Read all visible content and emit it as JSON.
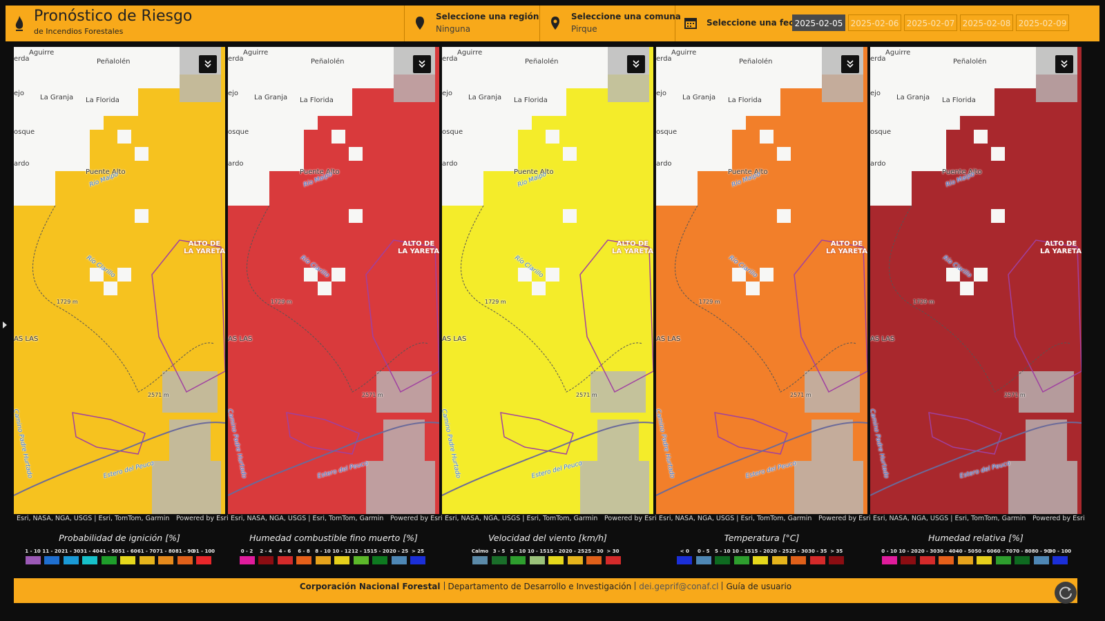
{
  "header": {
    "title": "Pronóstico de Riesgo",
    "subtitle": "de Incendios Forestales",
    "region": {
      "label": "Seleccione una región",
      "value": "Ninguna"
    },
    "comuna": {
      "label": "Seleccione una comuna",
      "value": "Pirque"
    },
    "date": {
      "label": "Seleccione una fecha",
      "options": [
        "2025-02-05",
        "2025-02-06",
        "2025-02-07",
        "2025-02-08",
        "2025-02-09"
      ],
      "selected": 0
    }
  },
  "map_labels": [
    "Aguirre",
    "erda",
    "Peñalolén",
    "ejo",
    "La Granja",
    "La Florida",
    "osque",
    "ardo",
    "Puente Alto",
    "Río Maipo",
    "ALTO DE LA YARETA",
    "Río Clarillo",
    "1729 m",
    "2571 m",
    "Camino Padre Hurtado",
    "Estero del Peuco",
    "AS LAS"
  ],
  "panels": [
    {
      "title": "Probabilidad de ignición [%]",
      "color": "#f6c21f",
      "attribution": "Esri, NASA, NGA, USGS | Esri, TomTom, Garmin…",
      "powered": "Powered by Esri",
      "legend": [
        {
          "label": "1 - 10",
          "color": "#9b59b6"
        },
        {
          "label": "11 - 20",
          "color": "#1f6fd0"
        },
        {
          "label": "21 - 30",
          "color": "#1a9ad6"
        },
        {
          "label": "31 - 40",
          "color": "#17c0c9"
        },
        {
          "label": "41 - 50",
          "color": "#1f9e2b"
        },
        {
          "label": "51 - 60",
          "color": "#e6d81c"
        },
        {
          "label": "61 - 70",
          "color": "#e6b41c"
        },
        {
          "label": "71 - 80",
          "color": "#e68a1c"
        },
        {
          "label": "81 - 90",
          "color": "#e0601a"
        },
        {
          "label": "91 - 100",
          "color": "#e8262a"
        }
      ]
    },
    {
      "title": "Humedad combustible fino muerto [%]",
      "color": "#d93a3c",
      "attribution": "Esri, NASA, NGA, USGS | Esri, TomTom, Garmin,…",
      "powered": "Powered by Esri",
      "legend": [
        {
          "label": "0 - 2",
          "color": "#e01c9c"
        },
        {
          "label": "2 - 4",
          "color": "#8b0d12"
        },
        {
          "label": "4 - 6",
          "color": "#d42a2a"
        },
        {
          "label": "6 - 8",
          "color": "#e6601a"
        },
        {
          "label": "8 - 10",
          "color": "#e6a31c"
        },
        {
          "label": "10 - 12",
          "color": "#e6d01c"
        },
        {
          "label": "12 - 15",
          "color": "#5cb82a"
        },
        {
          "label": "15 - 20",
          "color": "#0e7a20"
        },
        {
          "label": "20 - 25",
          "color": "#4e87b5"
        },
        {
          "label": "> 25",
          "color": "#1b2fd8"
        }
      ]
    },
    {
      "title": "Velocidad del viento [km/h]",
      "color": "#f4ec2a",
      "attribution": "Esri, NASA, NGA, USGS | Esri, TomTom, Garmin, …",
      "powered": "Powered by Esri",
      "legend": [
        {
          "label": "Calmo",
          "color": "#5b8aa8"
        },
        {
          "label": "3 - 5",
          "color": "#1a6e2a"
        },
        {
          "label": "5 - 10",
          "color": "#2e9e2e"
        },
        {
          "label": "10 - 15",
          "color": "#9bc27a"
        },
        {
          "label": "15 - 20",
          "color": "#e6d81c"
        },
        {
          "label": "20 - 25",
          "color": "#e6b41c"
        },
        {
          "label": "25 - 30",
          "color": "#e0601a"
        },
        {
          "label": "> 30",
          "color": "#d42a2a"
        }
      ]
    },
    {
      "title": "Temperatura [°C]",
      "color": "#f27f2a",
      "attribution": "Esri, NASA, NGA, USGS | Esri, TomTom, Garmin, …",
      "powered": "Powered by Esri",
      "legend": [
        {
          "label": "< 0",
          "color": "#1b2fd8"
        },
        {
          "label": "0 - 5",
          "color": "#4e87b5"
        },
        {
          "label": "5 - 10",
          "color": "#0e6a20"
        },
        {
          "label": "10 - 15",
          "color": "#2e9e2e"
        },
        {
          "label": "15 - 20",
          "color": "#e6d81c"
        },
        {
          "label": "20 - 25",
          "color": "#e6b41c"
        },
        {
          "label": "25 - 30",
          "color": "#e0601a"
        },
        {
          "label": "30 - 35",
          "color": "#d42a2a"
        },
        {
          "label": "> 35",
          "color": "#8b0d12"
        }
      ]
    },
    {
      "title": "Humedad relativa [%]",
      "color": "#a9282d",
      "attribution": "Esri, NASA, NGA, USGS | Esri, TomTom, Garmin…",
      "powered": "Powered by Esri",
      "legend": [
        {
          "label": "0 - 10",
          "color": "#e01c9c"
        },
        {
          "label": "10 - 20",
          "color": "#8b0d12"
        },
        {
          "label": "20 - 30",
          "color": "#d42a2a"
        },
        {
          "label": "30 - 40",
          "color": "#e6601a"
        },
        {
          "label": "40 - 50",
          "color": "#e6a31c"
        },
        {
          "label": "50 - 60",
          "color": "#e6d01c"
        },
        {
          "label": "60 - 70",
          "color": "#2e9e2e"
        },
        {
          "label": "70 - 80",
          "color": "#0e6a20"
        },
        {
          "label": "80 - 90",
          "color": "#4e87b5"
        },
        {
          "label": "90 - 100",
          "color": "#1b2fd8"
        }
      ]
    }
  ],
  "footer": {
    "org": "Corporación Nacional Forestal",
    "dept": "Departamento de Desarrollo e Investigación",
    "email": "dei.geprif@conaf.cl",
    "guide": "Guía de usuario"
  }
}
